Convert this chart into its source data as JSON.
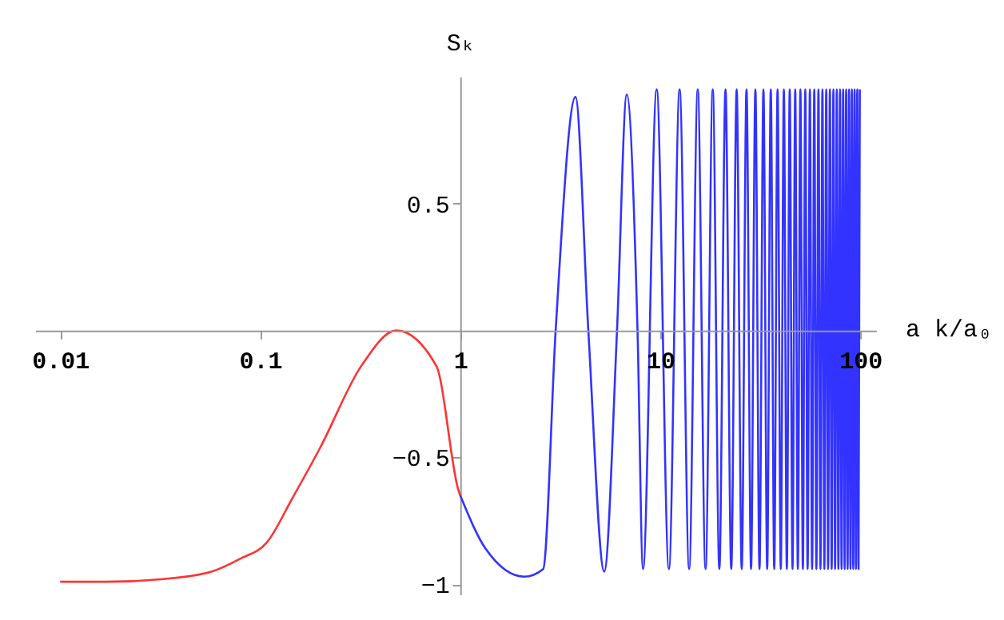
{
  "chart_data": {
    "type": "line",
    "xlabel": "a k/a₀",
    "ylabel": "Sₖ",
    "log": "x",
    "grid": false,
    "marker": "none",
    "xlim": [
      0.0075,
      120
    ],
    "xticks": [
      0.01,
      0.1,
      1,
      10,
      100
    ],
    "ylim": [
      -1.04,
      1.0
    ],
    "yticks": [
      -1,
      -0.5,
      0.5
    ],
    "series": [
      {
        "color": "#ff3333",
        "x": [
          0.01,
          0.017,
          0.032,
          0.057,
          0.079,
          0.108,
          0.145,
          0.2,
          0.32,
          0.48,
          0.76,
          0.98,
          1
        ],
        "values": [
          -0.99,
          -0.99,
          -0.98,
          -0.95,
          -0.9,
          -0.835,
          -0.66,
          -0.46,
          -0.14,
          0,
          -0.14,
          -0.63,
          -0.65
        ]
      },
      {
        "color": "#3333ff",
        "x": [
          1,
          1.34,
          2.09,
          2.6,
          3.0,
          3.77,
          4.37,
          5.25,
          6.08,
          6.8,
          7.7,
          8.2,
          9.6,
          11.05,
          12.5,
          13.95,
          15.4,
          16.85,
          18.3,
          19.75,
          21.2,
          22.65,
          24.1,
          25.55,
          27.0,
          28.45,
          29.9,
          31.35,
          32.8,
          34.25,
          35.7,
          37.15,
          38.6,
          40.05,
          41.5,
          42.95,
          44.4,
          45.85,
          47.3,
          48.75,
          50.2,
          51.65,
          53.1,
          54.55,
          56.0,
          57.45,
          58.9,
          60.35,
          61.8,
          63.25,
          64.7,
          66.15,
          67.6,
          69.05,
          70.5,
          71.95,
          73.4,
          74.85,
          76.3,
          77.75,
          79.2,
          80.65,
          82.1,
          83.55,
          85.0,
          86.45,
          87.9,
          89.35,
          90.8,
          92.25,
          93.7,
          95.15,
          96.6,
          98.05,
          99.5
        ],
        "values": [
          -0.65,
          -0.86,
          -0.97,
          -0.94,
          0,
          0.92,
          0,
          -0.95,
          0,
          0.93,
          0,
          -0.94,
          0.95,
          -0.94,
          0.95,
          -0.94,
          0.95,
          -0.94,
          0.95,
          -0.94,
          0.95,
          -0.94,
          0.95,
          -0.94,
          0.95,
          -0.94,
          0.95,
          -0.94,
          0.95,
          -0.94,
          0.95,
          -0.94,
          0.95,
          -0.94,
          0.95,
          -0.94,
          0.95,
          -0.94,
          0.95,
          -0.94,
          0.95,
          -0.94,
          0.95,
          -0.94,
          0.95,
          -0.94,
          0.95,
          -0.94,
          0.95,
          -0.94,
          0.95,
          -0.94,
          0.95,
          -0.94,
          0.95,
          -0.94,
          0.95,
          -0.94,
          0.95,
          -0.94,
          0.95,
          -0.94,
          0.95,
          -0.94,
          0.95,
          -0.94,
          0.95,
          -0.94,
          0.95,
          -0.94,
          0.95,
          -0.94,
          0.95,
          -0.94,
          0.95
        ]
      }
    ]
  }
}
